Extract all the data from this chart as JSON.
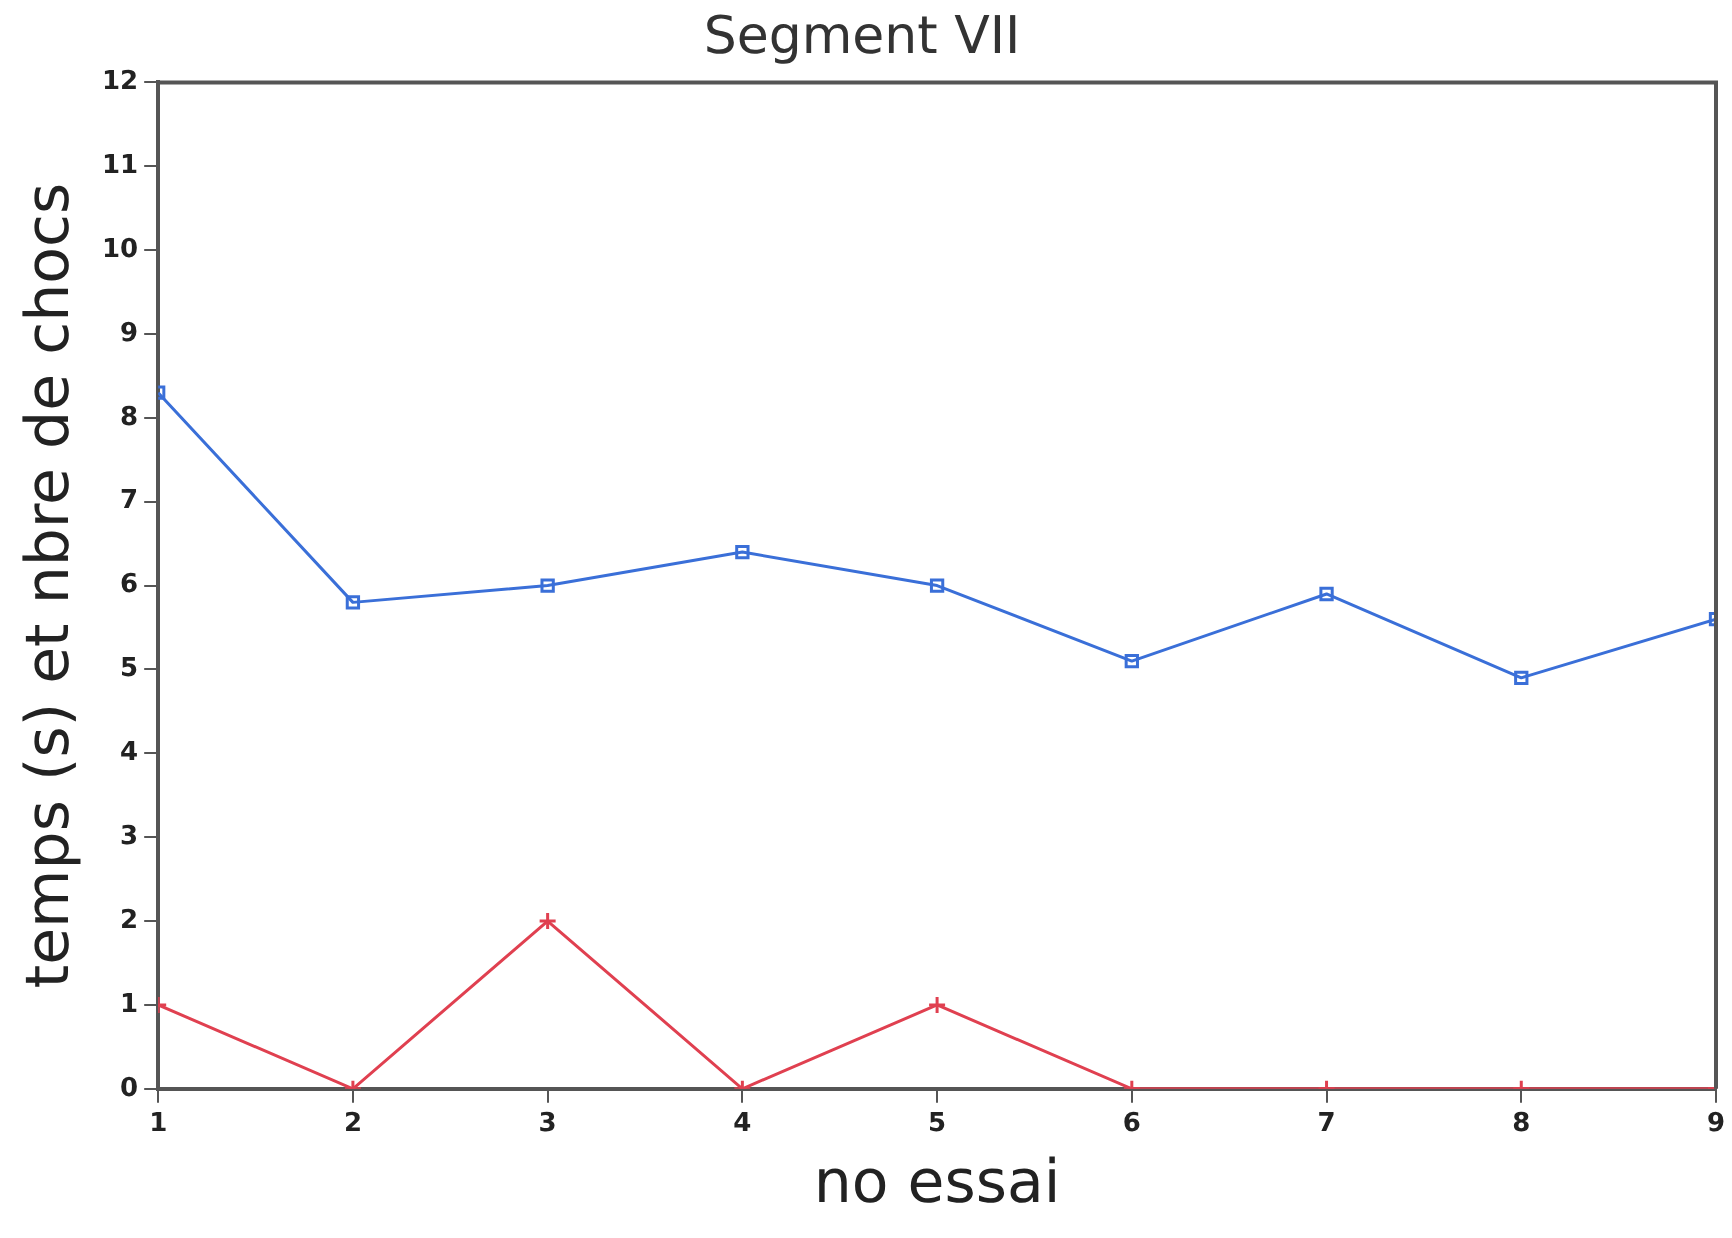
{
  "chart_data": {
    "type": "line",
    "title": "Segment VII",
    "xlabel": "no essai",
    "ylabel": "temps (s) et nbre de chocs",
    "x": [
      1,
      2,
      3,
      4,
      5,
      6,
      7,
      8,
      9
    ],
    "series": [
      {
        "color": "#3a6fd8",
        "marker": "square",
        "values": [
          8.3,
          5.8,
          6.0,
          6.4,
          6.0,
          5.1,
          5.9,
          4.9,
          5.6
        ]
      },
      {
        "color": "#e04050",
        "marker": "cross",
        "values": [
          1,
          0,
          2,
          0,
          1,
          0,
          0,
          0,
          0
        ]
      }
    ],
    "xlim": [
      1,
      9
    ],
    "xticks": [
      1,
      2,
      3,
      4,
      5,
      6,
      7,
      8,
      9
    ],
    "ylim": [
      0,
      12
    ],
    "yticks": [
      0,
      1,
      2,
      3,
      4,
      5,
      6,
      7,
      8,
      9,
      10,
      11,
      12
    ],
    "grid": false,
    "legend": false,
    "line_style": "solid"
  }
}
